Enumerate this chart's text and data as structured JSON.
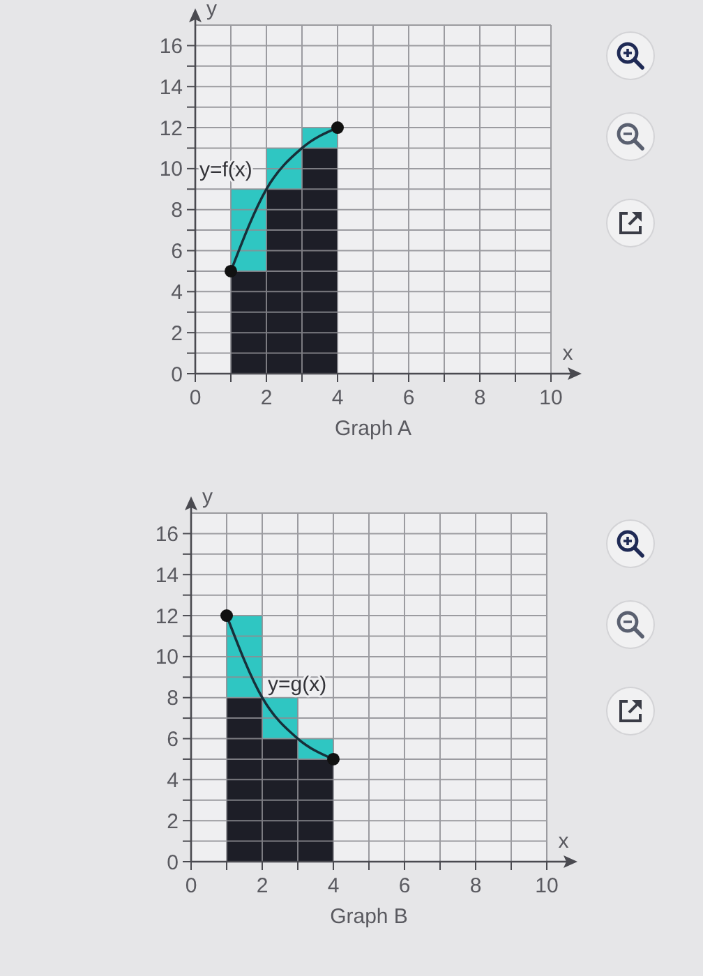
{
  "chart_data": [
    {
      "type": "bar",
      "title": "Graph A",
      "xlabel": "x",
      "ylabel": "y",
      "x": [
        1.5,
        2.5,
        3.5
      ],
      "stacked": true,
      "series": [
        {
          "color": "#1d1e27",
          "values": [
            5,
            9,
            11
          ]
        },
        {
          "color": "#2fc6c2",
          "values": [
            4,
            2,
            1
          ]
        },
        {
          "type": "line",
          "name": "y=f(x)",
          "color": "#17303a",
          "x": [
            1,
            2,
            3,
            4
          ],
          "values": [
            5,
            9,
            11,
            12
          ]
        },
        {
          "type": "scatter",
          "color": "#111111",
          "marker": "circle",
          "x": [
            1,
            4
          ],
          "values": [
            5,
            12
          ]
        }
      ],
      "xlim": [
        0,
        10
      ],
      "ylim": [
        0,
        17
      ],
      "xticks": [
        0,
        {
          "value": 1,
          "label": null
        },
        2,
        {
          "value": 3,
          "label": null
        },
        4,
        {
          "value": 5,
          "label": null
        },
        6,
        {
          "value": 7,
          "label": null
        },
        8,
        {
          "value": 9,
          "label": null
        },
        10
      ],
      "yticks": [
        0,
        {
          "value": 1,
          "label": null
        },
        2,
        {
          "value": 3,
          "label": null
        },
        4,
        {
          "value": 5,
          "label": null
        },
        6,
        {
          "value": 7,
          "label": null
        },
        8,
        {
          "value": 9,
          "label": null
        },
        10,
        {
          "value": 11,
          "label": null
        },
        12,
        {
          "value": 13,
          "label": null
        },
        14,
        {
          "value": 15,
          "label": null
        },
        16
      ],
      "grid": true
    },
    {
      "type": "bar",
      "title": "Graph B",
      "xlabel": "x",
      "ylabel": "y",
      "x": [
        1.5,
        2.5,
        3.5
      ],
      "stacked": true,
      "series": [
        {
          "color": "#1d1e27",
          "values": [
            8,
            6,
            5
          ]
        },
        {
          "color": "#2fc6c2",
          "values": [
            4,
            2,
            1
          ]
        },
        {
          "type": "line",
          "name": "y=g(x)",
          "color": "#17303a",
          "x": [
            1,
            2,
            3,
            4
          ],
          "values": [
            12,
            8,
            6,
            5
          ]
        },
        {
          "type": "scatter",
          "color": "#111111",
          "marker": "circle",
          "x": [
            1,
            4
          ],
          "values": [
            12,
            5
          ]
        }
      ],
      "xlim": [
        0,
        10
      ],
      "ylim": [
        0,
        17
      ],
      "xticks": [
        0,
        {
          "value": 1,
          "label": null
        },
        2,
        {
          "value": 3,
          "label": null
        },
        4,
        {
          "value": 5,
          "label": null
        },
        6,
        {
          "value": 7,
          "label": null
        },
        8,
        {
          "value": 9,
          "label": null
        },
        10
      ],
      "yticks": [
        0,
        {
          "value": 1,
          "label": null
        },
        2,
        {
          "value": 3,
          "label": null
        },
        4,
        {
          "value": 5,
          "label": null
        },
        6,
        {
          "value": 7,
          "label": null
        },
        8,
        {
          "value": 9,
          "label": null
        },
        10,
        {
          "value": 11,
          "label": null
        },
        12,
        {
          "value": 13,
          "label": null
        },
        14,
        {
          "value": 15,
          "label": null
        },
        16
      ],
      "grid": true
    }
  ]
}
